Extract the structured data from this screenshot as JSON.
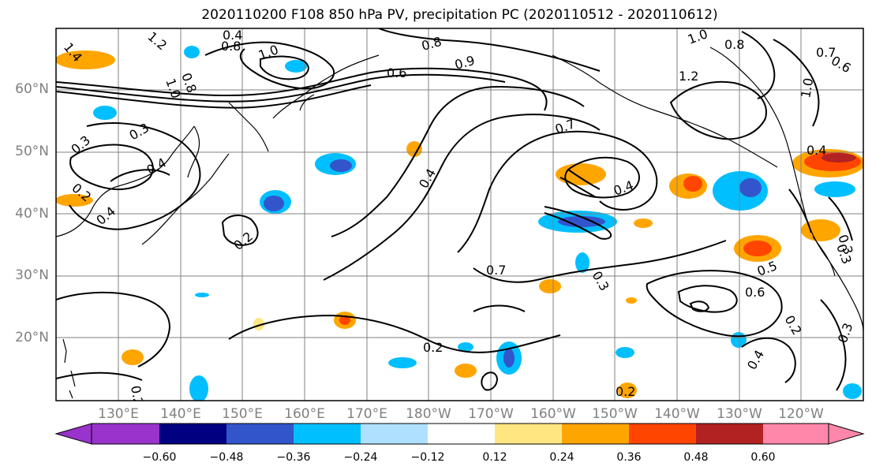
{
  "title": "2020110200 F108 850 hPa PV, precipitation PC (2020110512 - 2020110612)",
  "axes": {
    "lat_labels": [
      "60°N",
      "50°N",
      "40°N",
      "30°N",
      "20°N"
    ],
    "lon_labels": [
      "130°E",
      "140°E",
      "150°E",
      "160°E",
      "170°E",
      "180°W",
      "170°W",
      "160°W",
      "150°W",
      "140°W",
      "130°W",
      "120°W"
    ],
    "lat_values": [
      60,
      50,
      40,
      30,
      20
    ],
    "lon_values": [
      130,
      140,
      150,
      160,
      170,
      180,
      190,
      200,
      210,
      220,
      230,
      240
    ],
    "lat_range": [
      10,
      70
    ],
    "lon_range": [
      120,
      250
    ],
    "grid": true
  },
  "contour_labels": [
    "1.4",
    "1.2",
    "0.4",
    "0.8",
    "1.0",
    "1.0",
    "0.8",
    "0.6",
    "0.8",
    "0.9",
    "1.0",
    "0.8",
    "0.7",
    "0.6",
    "1.2",
    "1.0",
    "0.3",
    "0.3",
    "0.4",
    "0.2",
    "0.4",
    "0.2",
    "0.4",
    "0.7",
    "0.4",
    "0.4",
    "0.7",
    "0.3",
    "0.5",
    "0.6",
    "0.3",
    "0.2",
    "0.2",
    "0.4",
    "0.3",
    "0.2",
    "0.3",
    "0.2"
  ],
  "colorbar": {
    "colors": [
      "#9933cc",
      "#000080",
      "#3355cc",
      "#00bfff",
      "#b0e0ff",
      "#ffffff",
      "#ffe680",
      "#ffa500",
      "#ff4500",
      "#b22222",
      "#ff88aa"
    ],
    "tick_labels": [
      "−0.60",
      "−0.48",
      "−0.36",
      "−0.24",
      "−0.12",
      "0.12",
      "0.24",
      "0.36",
      "0.48",
      "0.60"
    ],
    "tick_values": [
      -0.6,
      -0.48,
      -0.36,
      -0.24,
      -0.12,
      0.12,
      0.24,
      0.36,
      0.48,
      0.6
    ]
  }
}
